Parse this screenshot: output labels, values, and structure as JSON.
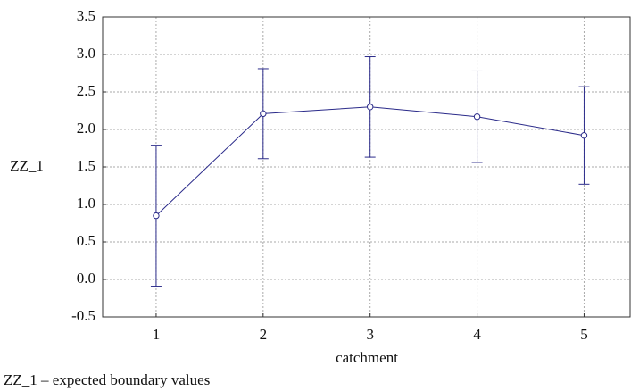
{
  "chart_data": {
    "type": "errorbar-line",
    "x_label": "catchment",
    "y_label": "ZZ_1",
    "footnote": "ZZ_1 – expected boundary values",
    "x": [
      1,
      2,
      3,
      4,
      5
    ],
    "series": [
      {
        "name": "ZZ_1",
        "color": "#2b2b8a",
        "values": [
          0.85,
          2.21,
          2.3,
          2.17,
          1.92
        ],
        "errors": [
          0.94,
          0.6,
          0.67,
          0.61,
          0.65
        ]
      }
    ],
    "xlim": [
      0.5,
      5.43
    ],
    "xticks": [
      1,
      2,
      3,
      4,
      5
    ],
    "ylim": [
      -0.5,
      3.5
    ],
    "yticks": [
      -0.5,
      {
        "value": 0,
        "label": "0.0"
      },
      0.5,
      {
        "value": 1,
        "label": "1.0"
      },
      1.5,
      {
        "value": 2,
        "label": "2.0"
      },
      2.5,
      {
        "value": 3,
        "label": "3.0"
      },
      3.5
    ],
    "grid": true
  }
}
